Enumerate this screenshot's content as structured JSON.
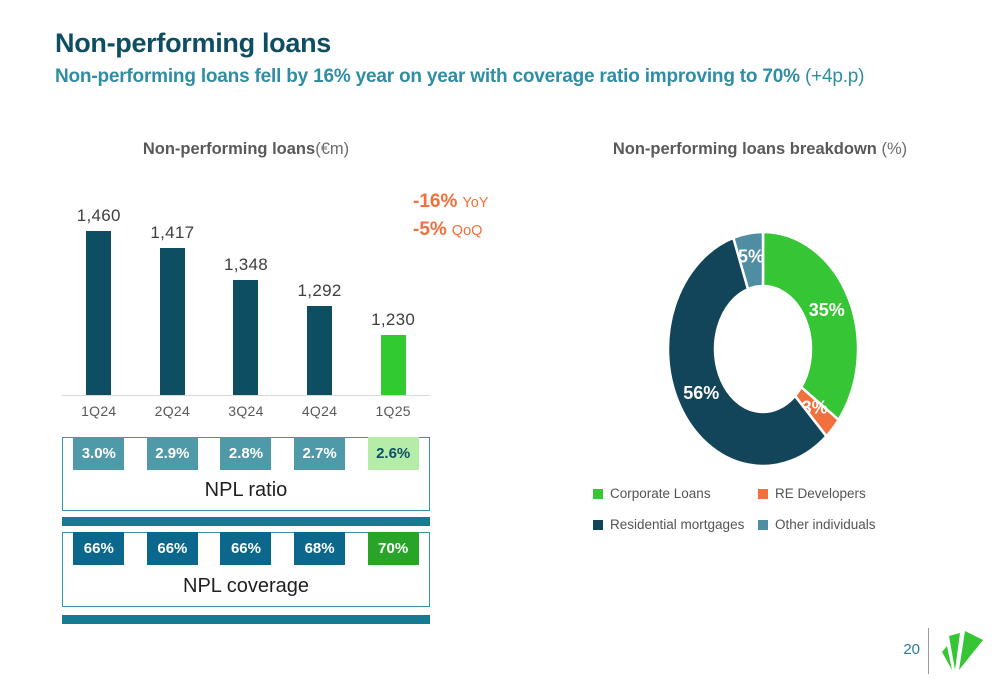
{
  "slide": {
    "title": "Non-performing loans",
    "subtitle_main": "Non-performing loans fell by 16% year on year with coverage ratio improving to 70%",
    "subtitle_note": "(+4p.p)",
    "page_number": "20"
  },
  "colors": {
    "dark_teal": "#0E4E62",
    "bright_green": "#31CB31",
    "orange": "#F1703C",
    "steel_blue": "#4E8DA2",
    "subtitle_teal": "#2F8EA3",
    "box_border_teal": "#3A93A8",
    "divider_teal": "#157A92",
    "logo_green": "#35C535"
  },
  "chart_data": [
    {
      "type": "bar",
      "title_main": "Non-performing loans",
      "title_unit": "(€m)",
      "categories": [
        "1Q24",
        "2Q24",
        "3Q24",
        "4Q24",
        "1Q25"
      ],
      "values": [
        1460,
        1417,
        1348,
        1292,
        1230
      ],
      "value_labels": [
        "1,460",
        "1,417",
        "1,348",
        "1,292",
        "1,230"
      ],
      "bar_colors": [
        "#0E4E62",
        "#0E4E62",
        "#0E4E62",
        "#0E4E62",
        "#31CB31"
      ],
      "ylim": [
        1100,
        1510
      ],
      "annotations": [
        {
          "value": "-16%",
          "period": "YoY"
        },
        {
          "value": "-5%",
          "period": "QoQ"
        }
      ]
    },
    {
      "type": "pie",
      "title_main": "Non-performing loans breakdown",
      "title_unit": " (%)",
      "segments": [
        {
          "key": "corporate-loans",
          "label": "Corporate Loans",
          "value": 35,
          "pct_label": "35%",
          "color": "#35C535",
          "label_r": 0.75
        },
        {
          "key": "re-developers",
          "label": "RE Developers",
          "value": 3,
          "pct_label": "3%",
          "color": "#F1703C",
          "label_r": 0.74
        },
        {
          "key": "residential-mortgages",
          "label": "Residential mortgages",
          "value": 56,
          "pct_label": "56%",
          "color": "#13455A",
          "label_r": 0.75
        },
        {
          "key": "other-individuals",
          "label": "Other individuals",
          "value": 5,
          "pct_label": "5%",
          "color": "#4E8DA2",
          "label_r": 0.8
        }
      ]
    }
  ],
  "npl_ratio": {
    "label": "NPL ratio",
    "cells": [
      {
        "text": "3.0%",
        "bg": "#4F9AA8",
        "fg": "#ffffff"
      },
      {
        "text": "2.9%",
        "bg": "#4F9AA8",
        "fg": "#ffffff"
      },
      {
        "text": "2.8%",
        "bg": "#4F9AA8",
        "fg": "#ffffff"
      },
      {
        "text": "2.7%",
        "bg": "#4F9AA8",
        "fg": "#ffffff"
      },
      {
        "text": "2.6%",
        "bg": "#B5EDA8",
        "fg": "#0E4E62"
      }
    ]
  },
  "npl_coverage": {
    "label": "NPL coverage",
    "cells": [
      {
        "text": "66%",
        "bg": "#0B688C",
        "fg": "#ffffff"
      },
      {
        "text": "66%",
        "bg": "#0B688C",
        "fg": "#ffffff"
      },
      {
        "text": "66%",
        "bg": "#0B688C",
        "fg": "#ffffff"
      },
      {
        "text": "68%",
        "bg": "#0B688C",
        "fg": "#ffffff"
      },
      {
        "text": "70%",
        "bg": "#28A428",
        "fg": "#ffffff"
      }
    ]
  }
}
